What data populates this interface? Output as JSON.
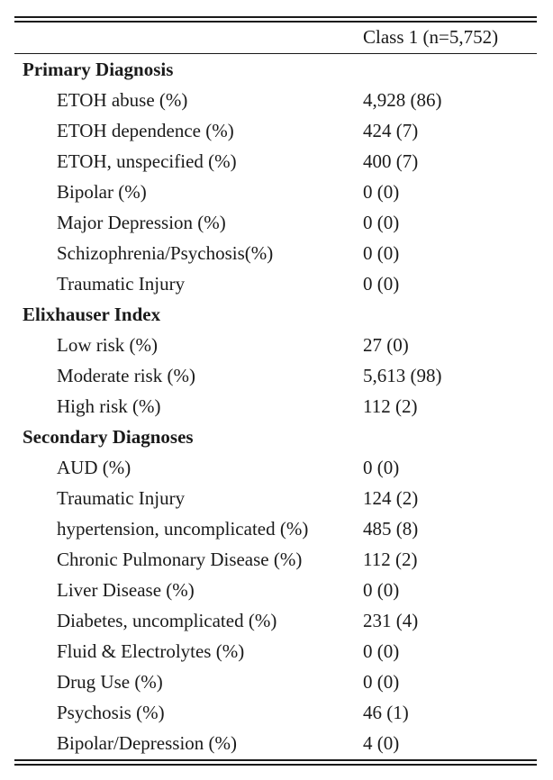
{
  "table": {
    "column_header": "Class 1 (n=5,752)",
    "sections": [
      {
        "title": "Primary Diagnosis",
        "rows": [
          {
            "label": "ETOH abuse (%)",
            "value": "4,928 (86)"
          },
          {
            "label": "ETOH dependence (%)",
            "value": "424 (7)"
          },
          {
            "label": "ETOH, unspecified (%)",
            "value": "400 (7)"
          },
          {
            "label": "Bipolar (%)",
            "value": "0 (0)"
          },
          {
            "label": "Major Depression (%)",
            "value": "0 (0)"
          },
          {
            "label": "Schizophrenia/Psychosis(%)",
            "value": "0 (0)"
          },
          {
            "label": "Traumatic Injury",
            "value": "0 (0)"
          }
        ]
      },
      {
        "title": "Elixhauser Index",
        "rows": [
          {
            "label": "Low risk (%)",
            "value": "27 (0)"
          },
          {
            "label": "Moderate risk (%)",
            "value": "5,613 (98)"
          },
          {
            "label": "High risk (%)",
            "value": "112 (2)"
          }
        ]
      },
      {
        "title": "Secondary Diagnoses",
        "rows": [
          {
            "label": "AUD (%)",
            "value": "0 (0)"
          },
          {
            "label": "Traumatic Injury",
            "value": "124 (2)"
          },
          {
            "label": "hypertension, uncomplicated (%)",
            "value": "485 (8)"
          },
          {
            "label": "Chronic Pulmonary Disease (%)",
            "value": "112 (2)"
          },
          {
            "label": "Liver Disease (%)",
            "value": "0 (0)"
          },
          {
            "label": "Diabetes, uncomplicated (%)",
            "value": "231 (4)"
          },
          {
            "label": "Fluid & Electrolytes (%)",
            "value": "0 (0)"
          },
          {
            "label": "Drug Use (%)",
            "value": "0 (0)"
          },
          {
            "label": "Psychosis (%)",
            "value": "46 (1)"
          },
          {
            "label": "Bipolar/Depression (%)",
            "value": "4 (0)"
          }
        ]
      }
    ]
  }
}
